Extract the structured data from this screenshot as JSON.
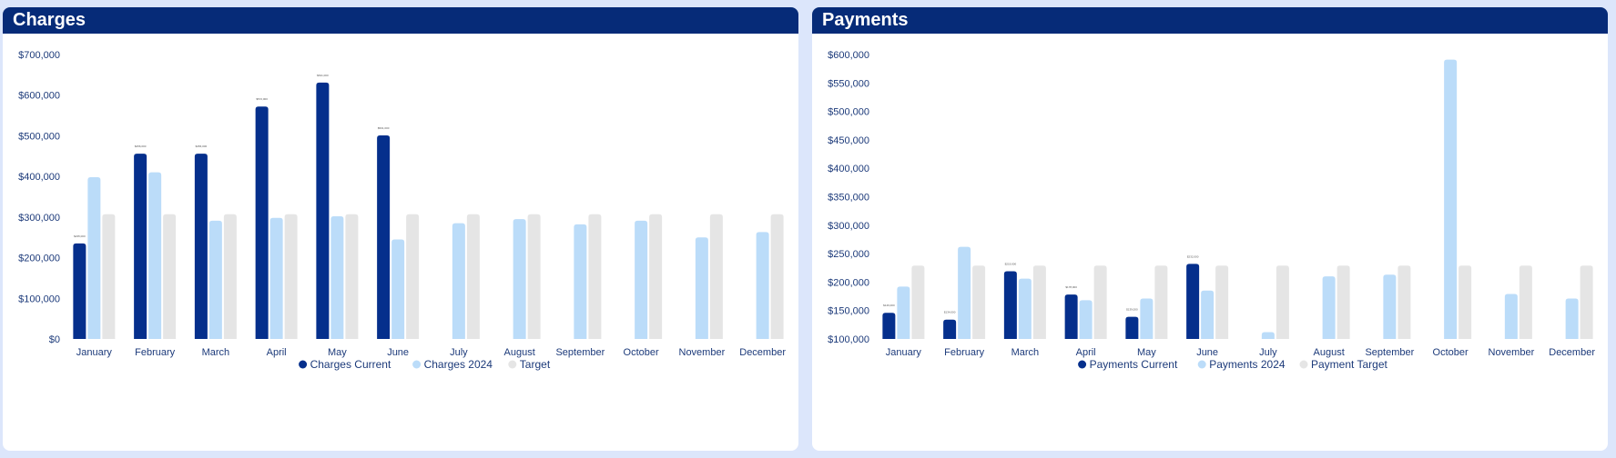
{
  "charges": {
    "title": "Charges",
    "chart_data": {
      "type": "bar",
      "categories": [
        "January",
        "February",
        "March",
        "April",
        "May",
        "June",
        "July",
        "August",
        "September",
        "October",
        "November",
        "December"
      ],
      "series": [
        {
          "name": "Charges Current",
          "color": "#052f8c",
          "values": [
            235000,
            456000,
            456000,
            572000,
            631000,
            501000,
            null,
            null,
            null,
            null,
            null,
            null
          ]
        },
        {
          "name": "Charges 2024",
          "color": "#bbdcf9",
          "values": [
            398000,
            410000,
            291000,
            298000,
            302000,
            245000,
            285000,
            295000,
            282000,
            291000,
            250000,
            263000
          ]
        },
        {
          "name": "Target",
          "color": "#e5e5e5",
          "values": [
            307000,
            307000,
            307000,
            307000,
            307000,
            307000,
            307000,
            307000,
            307000,
            307000,
            307000,
            307000
          ]
        }
      ],
      "yticks": [
        "$0",
        "$100,000",
        "$200,000",
        "$300,000",
        "$400,000",
        "$500,000",
        "$600,000",
        "$700,000"
      ],
      "ylim": [
        0,
        700000
      ],
      "legend_position": "bottom"
    }
  },
  "payments": {
    "title": "Payments",
    "chart_data": {
      "type": "bar",
      "categories": [
        "January",
        "February",
        "March",
        "April",
        "May",
        "June",
        "July",
        "August",
        "September",
        "October",
        "November",
        "December"
      ],
      "series": [
        {
          "name": "Payments Current",
          "color": "#052f8c",
          "values": [
            146000,
            134000,
            219000,
            178000,
            139000,
            232000,
            null,
            null,
            null,
            null,
            null,
            null
          ]
        },
        {
          "name": "Payments 2024",
          "color": "#bbdcf9",
          "values": [
            192000,
            262000,
            206000,
            168000,
            171000,
            185000,
            112000,
            210000,
            213000,
            591000,
            179000,
            171000
          ]
        },
        {
          "name": "Payment Target",
          "color": "#e5e5e5",
          "values": [
            229000,
            229000,
            229000,
            229000,
            229000,
            229000,
            229000,
            229000,
            229000,
            229000,
            229000,
            229000
          ]
        }
      ],
      "yticks": [
        "$100,000",
        "$150,000",
        "$200,000",
        "$250,000",
        "$300,000",
        "$350,000",
        "$400,000",
        "$450,000",
        "$500,000",
        "$550,000",
        "$600,000"
      ],
      "ylim": [
        100000,
        600000
      ],
      "legend_position": "bottom"
    }
  }
}
